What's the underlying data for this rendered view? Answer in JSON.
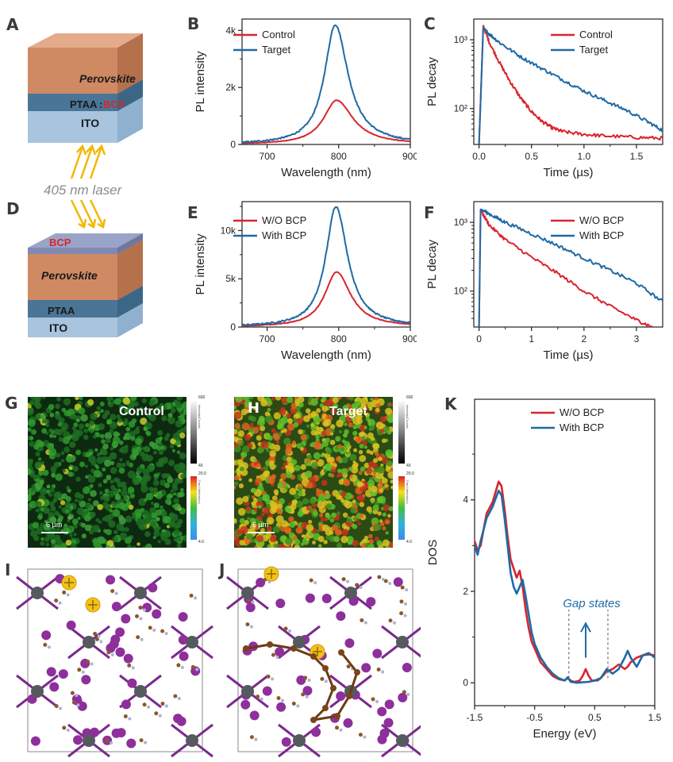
{
  "panel_letters": [
    "A",
    "B",
    "C",
    "D",
    "E",
    "F",
    "G",
    "H",
    "I",
    "J",
    "K"
  ],
  "panel_A": {
    "layers": [
      "Perovskite",
      "PTAA",
      "BCP",
      "ITO"
    ],
    "ptaa_sep": ":"
  },
  "laser_label": "405 nm laser",
  "panel_D": {
    "layers": [
      "BCP",
      "Perovskite",
      "PTAA",
      "ITO"
    ]
  },
  "panel_G": {
    "label": "Control",
    "scale_bar": "6 µm",
    "colorbar_top": [
      "600",
      "20.0"
    ],
    "colorbar_bottom": [
      "40",
      "4.0"
    ],
    "colorbar_gray_title": "Intensity(Counts)",
    "colorbar_color_title": "Fast Lifetime(ns)"
  },
  "panel_H": {
    "label": "Target",
    "scale_bar": "6 µm",
    "colorbar_top": [
      "600",
      "20.0"
    ],
    "colorbar_bottom": [
      "40",
      "4.0"
    ],
    "colorbar_gray_title": "Intensity(Counts)",
    "colorbar_color_title": "Fast Lifetime(ns)"
  },
  "colors": {
    "red": "#d7262d",
    "blue": "#1f6aa5",
    "axis": "#231f20",
    "annotation": "#1f6aa5",
    "arrow_yellow": "#f2b705"
  },
  "chart_data": [
    {
      "panel": "B",
      "type": "line",
      "xlabel": "Wavelength (nm)",
      "ylabel": "PL intensity",
      "xlim": [
        665,
        900
      ],
      "ylim": [
        0,
        4400
      ],
      "xticks": [
        700,
        800,
        900
      ],
      "xtick_labels": [
        "700",
        "800",
        "900"
      ],
      "yticks": [
        0,
        2000,
        4000
      ],
      "ytick_labels": [
        "0",
        "2k",
        "4k"
      ],
      "legend": "top-left",
      "series": [
        {
          "name": "Control",
          "color": "#d7262d",
          "peak_x": 797,
          "peak_y": 1550,
          "hwhm_left": 22,
          "hwhm_right": 28
        },
        {
          "name": "Target",
          "color": "#1f6aa5",
          "peak_x": 795,
          "peak_y": 4200,
          "hwhm_left": 18,
          "hwhm_right": 22
        }
      ]
    },
    {
      "panel": "C",
      "type": "line",
      "xlabel": "Time (µs)",
      "ylabel": "PL decay",
      "xlim": [
        -0.05,
        1.75
      ],
      "ylim": [
        30,
        2000
      ],
      "yscale": "log",
      "xticks": [
        0,
        0.5,
        1.0,
        1.5
      ],
      "xtick_labels": [
        "0.0",
        "0.5",
        "1.0",
        "1.5"
      ],
      "yticks": [
        100,
        1000
      ],
      "ytick_labels": [
        "10²",
        "10³"
      ],
      "legend": "top-right",
      "series": [
        {
          "name": "Control",
          "color": "#d7262d",
          "x": [
            0.04,
            0.1,
            0.2,
            0.3,
            0.4,
            0.5,
            0.6,
            0.7,
            0.8,
            1.0,
            1.2,
            1.5,
            1.75
          ],
          "y": [
            1600,
            900,
            450,
            240,
            140,
            90,
            65,
            52,
            46,
            42,
            40,
            38,
            37
          ]
        },
        {
          "name": "Target",
          "color": "#1f6aa5",
          "x": [
            0.04,
            0.1,
            0.2,
            0.4,
            0.6,
            0.8,
            1.0,
            1.2,
            1.4,
            1.6,
            1.75
          ],
          "y": [
            1450,
            1200,
            900,
            560,
            380,
            260,
            180,
            130,
            95,
            65,
            48
          ]
        }
      ]
    },
    {
      "panel": "E",
      "type": "line",
      "xlabel": "Wavelength (nm)",
      "ylabel": "PL intensity",
      "xlim": [
        665,
        900
      ],
      "ylim": [
        0,
        13000
      ],
      "xticks": [
        700,
        800,
        900
      ],
      "xtick_labels": [
        "700",
        "800",
        "900"
      ],
      "yticks": [
        0,
        5000,
        10000
      ],
      "ytick_labels": [
        "0",
        "5k",
        "10k"
      ],
      "legend": "top-left",
      "series": [
        {
          "name": "W/O BCP",
          "color": "#d7262d",
          "peak_x": 797,
          "peak_y": 5700,
          "hwhm_left": 20,
          "hwhm_right": 24
        },
        {
          "name": "With BCP",
          "color": "#1f6aa5",
          "peak_x": 796,
          "peak_y": 12500,
          "hwhm_left": 17,
          "hwhm_right": 20
        }
      ]
    },
    {
      "panel": "F",
      "type": "line",
      "xlabel": "Time (µs)",
      "ylabel": "PL decay",
      "xlim": [
        -0.1,
        3.5
      ],
      "ylim": [
        30,
        2000
      ],
      "yscale": "log",
      "xticks": [
        0,
        1,
        2,
        3
      ],
      "xtick_labels": [
        "0",
        "1",
        "2",
        "3"
      ],
      "yticks": [
        100,
        1000
      ],
      "ytick_labels": [
        "10²",
        "10³"
      ],
      "legend": "top-right",
      "series": [
        {
          "name": "W/O BCP",
          "color": "#d7262d",
          "x": [
            0.03,
            0.2,
            0.5,
            1.0,
            1.5,
            2.0,
            2.5,
            3.0,
            3.3
          ],
          "y": [
            1500,
            900,
            560,
            310,
            180,
            100,
            60,
            38,
            30
          ]
        },
        {
          "name": "With BCP",
          "color": "#1f6aa5",
          "x": [
            0.03,
            0.3,
            0.5,
            1.0,
            1.5,
            2.0,
            2.5,
            3.0,
            3.5
          ],
          "y": [
            1550,
            1200,
            1000,
            680,
            460,
            300,
            200,
            130,
            70
          ]
        }
      ]
    },
    {
      "panel": "K",
      "type": "line",
      "xlabel": "Energy (eV)",
      "ylabel": "DOS",
      "xlim": [
        -1.5,
        1.5
      ],
      "ylim": [
        -0.5,
        6.2
      ],
      "xticks": [
        -1.5,
        -0.5,
        0.5,
        1.5
      ],
      "xtick_labels": [
        "-1.5",
        "-0.5",
        "0.5",
        "1.5"
      ],
      "yticks": [
        0,
        2,
        4
      ],
      "ytick_labels": [
        "0",
        "2",
        "4"
      ],
      "legend": "top-right",
      "annotation": "Gap states",
      "dashed_lines_x": [
        0.07,
        0.72
      ],
      "series": [
        {
          "name": "W/O BCP",
          "color": "#d7262d",
          "x": [
            -1.5,
            -1.45,
            -1.4,
            -1.3,
            -1.2,
            -1.1,
            -1.05,
            -1.0,
            -0.95,
            -0.9,
            -0.85,
            -0.8,
            -0.75,
            -0.7,
            -0.65,
            -0.6,
            -0.55,
            -0.5,
            -0.45,
            -0.4,
            -0.3,
            -0.2,
            -0.1,
            0.0,
            0.05,
            0.1,
            0.15,
            0.2,
            0.25,
            0.3,
            0.35,
            0.4,
            0.45,
            0.5,
            0.55,
            0.6,
            0.7,
            0.8,
            0.9,
            1.0,
            1.05,
            1.1,
            1.2,
            1.3,
            1.4,
            1.5
          ],
          "y": [
            3.1,
            2.9,
            3.0,
            3.7,
            3.95,
            4.4,
            4.3,
            3.8,
            3.2,
            2.7,
            2.5,
            2.3,
            2.45,
            2.1,
            1.6,
            1.2,
            0.9,
            0.75,
            0.6,
            0.45,
            0.3,
            0.15,
            0.08,
            0.05,
            0.1,
            0.05,
            0.02,
            0.03,
            0.05,
            0.15,
            0.3,
            0.15,
            0.05,
            0.05,
            0.05,
            0.1,
            0.25,
            0.3,
            0.4,
            0.3,
            0.35,
            0.45,
            0.55,
            0.6,
            0.62,
            0.6
          ]
        },
        {
          "name": "With BCP",
          "color": "#1f6aa5",
          "x": [
            -1.5,
            -1.45,
            -1.4,
            -1.3,
            -1.2,
            -1.1,
            -1.05,
            -1.0,
            -0.95,
            -0.9,
            -0.85,
            -0.8,
            -0.75,
            -0.7,
            -0.65,
            -0.6,
            -0.55,
            -0.5,
            -0.45,
            -0.4,
            -0.3,
            -0.2,
            -0.1,
            0.0,
            0.05,
            0.1,
            0.2,
            0.3,
            0.4,
            0.5,
            0.6,
            0.65,
            0.7,
            0.75,
            0.8,
            0.9,
            1.0,
            1.05,
            1.1,
            1.2,
            1.3,
            1.4,
            1.5
          ],
          "y": [
            3.0,
            2.8,
            3.1,
            3.6,
            3.85,
            4.2,
            4.1,
            3.6,
            3.0,
            2.4,
            2.1,
            1.95,
            2.1,
            2.25,
            1.9,
            1.5,
            1.1,
            0.85,
            0.7,
            0.55,
            0.35,
            0.2,
            0.1,
            0.05,
            0.12,
            0.02,
            0.0,
            0.01,
            0.02,
            0.05,
            0.1,
            0.2,
            0.3,
            0.25,
            0.2,
            0.3,
            0.55,
            0.7,
            0.55,
            0.35,
            0.6,
            0.65,
            0.55
          ]
        }
      ]
    }
  ]
}
